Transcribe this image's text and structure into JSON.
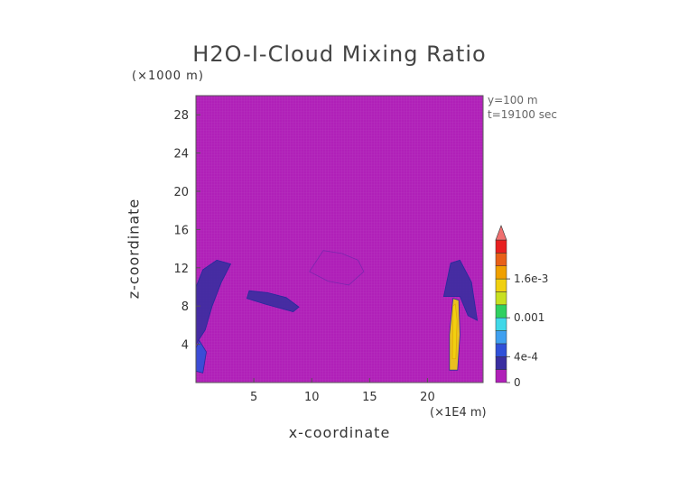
{
  "chart_data": {
    "type": "heatmap",
    "title": "H2O-I-Cloud Mixing Ratio",
    "xlabel": "x-coordinate",
    "ylabel": "z-coordinate",
    "x_unit": "(×1E4 m)",
    "y_unit": "(×1000 m)",
    "xlim": [
      0,
      24.8
    ],
    "ylim": [
      0,
      30
    ],
    "x_ticks": [
      5,
      10,
      15,
      20
    ],
    "y_ticks": [
      4,
      8,
      12,
      16,
      20,
      24,
      28
    ],
    "annotations": [
      "y=100 m",
      "t=19100 sec"
    ],
    "background_value": 0,
    "grid": false,
    "colorbar": {
      "tick_labels": [
        "0",
        "4e-4",
        "0.001",
        "1.6e-3"
      ],
      "tick_values": [
        0,
        0.0004,
        0.001,
        0.0016
      ],
      "range": [
        0,
        0.0022
      ],
      "extend": "max",
      "colors": [
        "#b020b8",
        "#3a2ea0",
        "#3050d8",
        "#3fa0f0",
        "#40d8e8",
        "#30d060",
        "#c8e020",
        "#f0d010",
        "#f0a000",
        "#e86018",
        "#e82020",
        "#f07070"
      ]
    },
    "features": [
      {
        "name": "low cloud left edge",
        "x": 0.5,
        "z": 2.5,
        "value": 0.0004
      },
      {
        "name": "cloud left edge band",
        "x": 0.7,
        "z": 10,
        "value": 0.0003
      },
      {
        "name": "cloud band mid-left",
        "x": 6.5,
        "z": 8,
        "value": 0.0002
      },
      {
        "name": "faint cloud center",
        "x": 12,
        "z": 12,
        "value": 5e-05
      },
      {
        "name": "core right",
        "x": 22.3,
        "z": 6,
        "value": 0.0015
      },
      {
        "name": "cloud right band",
        "x": 23,
        "z": 10,
        "value": 0.0003
      }
    ]
  }
}
